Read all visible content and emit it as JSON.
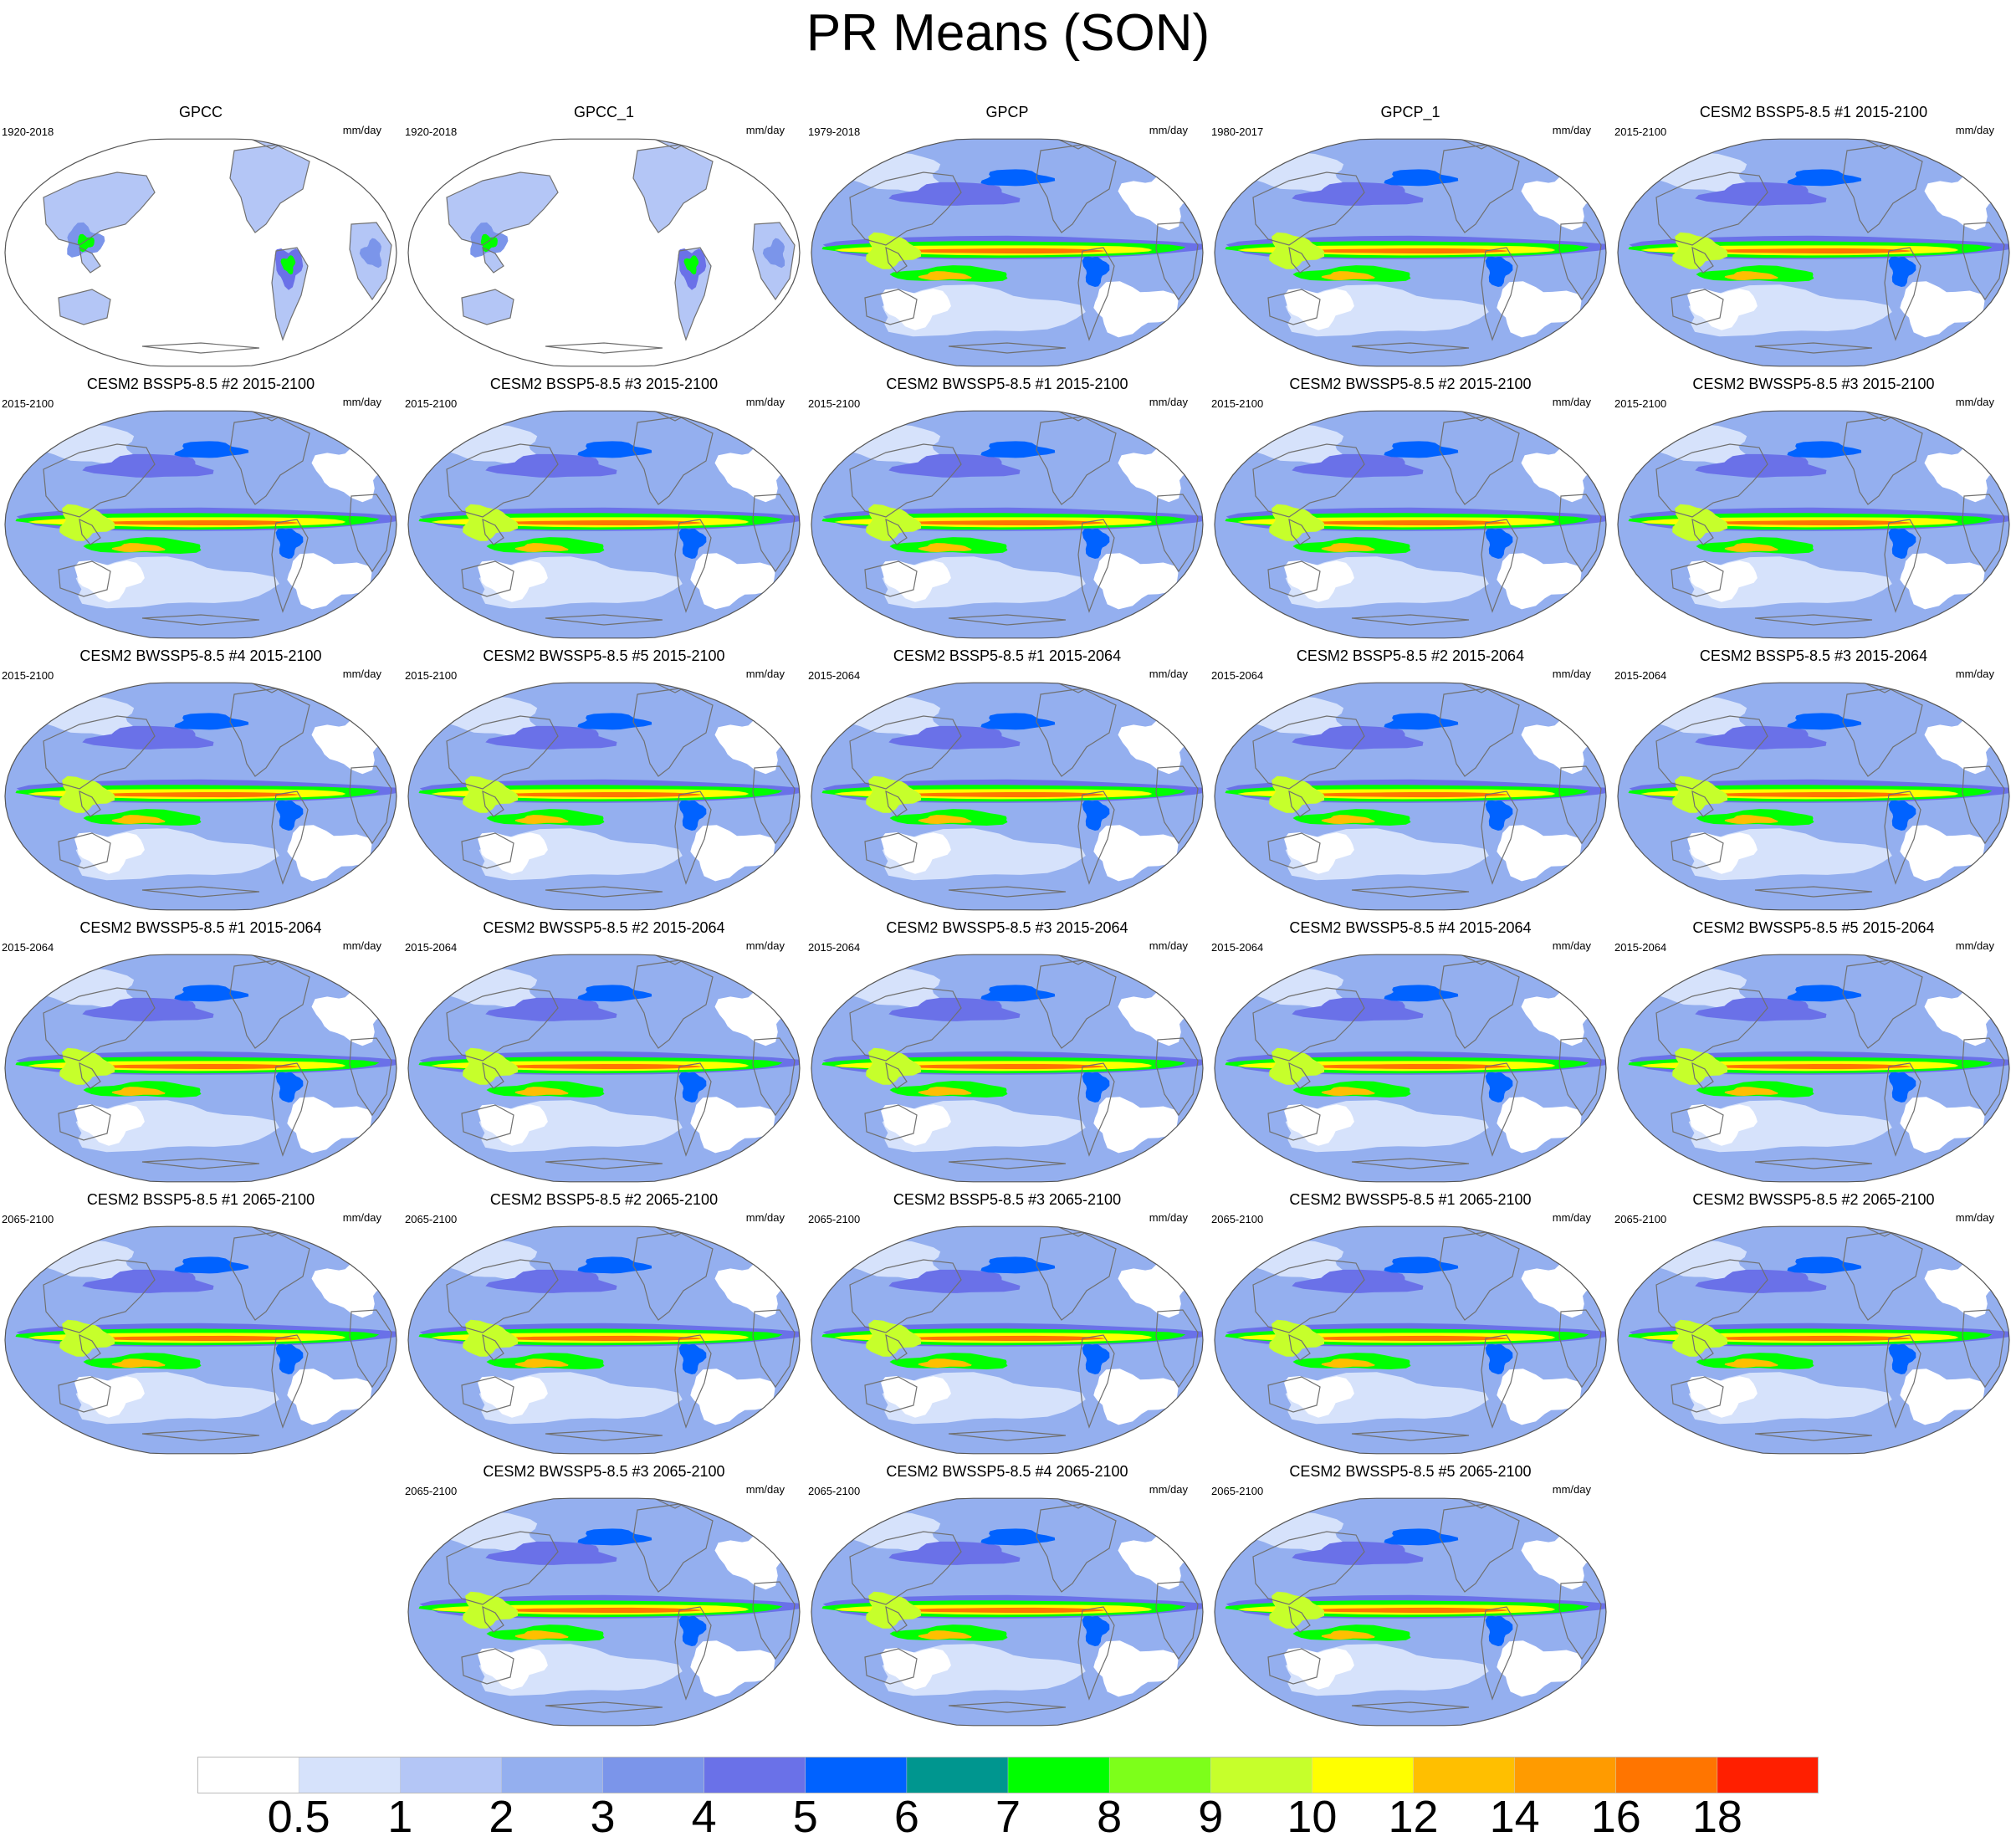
{
  "chart_data": {
    "type": "heatmap",
    "title": "PR Means (SON)",
    "projection": "global map (Robinson-like), Pacific-centered",
    "units": "mm/day",
    "colorbar": {
      "labels": [
        "0.5",
        "1",
        "2",
        "3",
        "4",
        "5",
        "6",
        "7",
        "8",
        "9",
        "10",
        "12",
        "14",
        "16",
        "18"
      ],
      "colors": [
        "#ffffff",
        "#d6e2fb",
        "#b4c6f6",
        "#94afef",
        "#7b95ea",
        "#6a71e8",
        "#0062ff",
        "#00968f",
        "#00ff00",
        "#7dff1a",
        "#c6ff2b",
        "#ffff00",
        "#ffbf00",
        "#ff9b00",
        "#ff7500",
        "#ff1f00"
      ]
    },
    "panels": [
      {
        "title": "GPCC",
        "period": "1920-2018",
        "units": "mm/day",
        "land_only": true
      },
      {
        "title": "GPCC_1",
        "period": "1920-2018",
        "units": "mm/day",
        "land_only": true
      },
      {
        "title": "GPCP",
        "period": "1979-2018",
        "units": "mm/day"
      },
      {
        "title": "GPCP_1",
        "period": "1980-2017",
        "units": "mm/day"
      },
      {
        "title": "CESM2 BSSP5-8.5 #1 2015-2100",
        "period": "2015-2100",
        "units": "mm/day"
      },
      {
        "title": "CESM2 BSSP5-8.5 #2 2015-2100",
        "period": "2015-2100",
        "units": "mm/day"
      },
      {
        "title": "CESM2 BSSP5-8.5 #3 2015-2100",
        "period": "2015-2100",
        "units": "mm/day"
      },
      {
        "title": "CESM2 BWSSP5-8.5 #1 2015-2100",
        "period": "2015-2100",
        "units": "mm/day"
      },
      {
        "title": "CESM2 BWSSP5-8.5 #2 2015-2100",
        "period": "2015-2100",
        "units": "mm/day"
      },
      {
        "title": "CESM2 BWSSP5-8.5 #3 2015-2100",
        "period": "2015-2100",
        "units": "mm/day"
      },
      {
        "title": "CESM2 BWSSP5-8.5 #4 2015-2100",
        "period": "2015-2100",
        "units": "mm/day"
      },
      {
        "title": "CESM2 BWSSP5-8.5 #5 2015-2100",
        "period": "2015-2100",
        "units": "mm/day"
      },
      {
        "title": "CESM2 BSSP5-8.5 #1 2015-2064",
        "period": "2015-2064",
        "units": "mm/day"
      },
      {
        "title": "CESM2 BSSP5-8.5 #2 2015-2064",
        "period": "2015-2064",
        "units": "mm/day"
      },
      {
        "title": "CESM2 BSSP5-8.5 #3 2015-2064",
        "period": "2015-2064",
        "units": "mm/day"
      },
      {
        "title": "CESM2 BWSSP5-8.5 #1 2015-2064",
        "period": "2015-2064",
        "units": "mm/day"
      },
      {
        "title": "CESM2 BWSSP5-8.5 #2 2015-2064",
        "period": "2015-2064",
        "units": "mm/day"
      },
      {
        "title": "CESM2 BWSSP5-8.5 #3 2015-2064",
        "period": "2015-2064",
        "units": "mm/day"
      },
      {
        "title": "CESM2 BWSSP5-8.5 #4 2015-2064",
        "period": "2015-2064",
        "units": "mm/day"
      },
      {
        "title": "CESM2 BWSSP5-8.5 #5 2015-2064",
        "period": "2015-2064",
        "units": "mm/day"
      },
      {
        "title": "CESM2 BSSP5-8.5 #1 2065-2100",
        "period": "2065-2100",
        "units": "mm/day"
      },
      {
        "title": "CESM2 BSSP5-8.5 #2 2065-2100",
        "period": "2065-2100",
        "units": "mm/day"
      },
      {
        "title": "CESM2 BSSP5-8.5 #3 2065-2100",
        "period": "2065-2100",
        "units": "mm/day"
      },
      {
        "title": "CESM2 BWSSP5-8.5 #1 2065-2100",
        "period": "2065-2100",
        "units": "mm/day"
      },
      {
        "title": "CESM2 BWSSP5-8.5 #2 2065-2100",
        "period": "2065-2100",
        "units": "mm/day"
      },
      {
        "title": "CESM2 BWSSP5-8.5 #3 2065-2100",
        "period": "2065-2100",
        "units": "mm/day"
      },
      {
        "title": "CESM2 BWSSP5-8.5 #4 2065-2100",
        "period": "2065-2100",
        "units": "mm/day"
      },
      {
        "title": "CESM2 BWSSP5-8.5 #5 2065-2100",
        "period": "2065-2100",
        "units": "mm/day"
      }
    ]
  }
}
